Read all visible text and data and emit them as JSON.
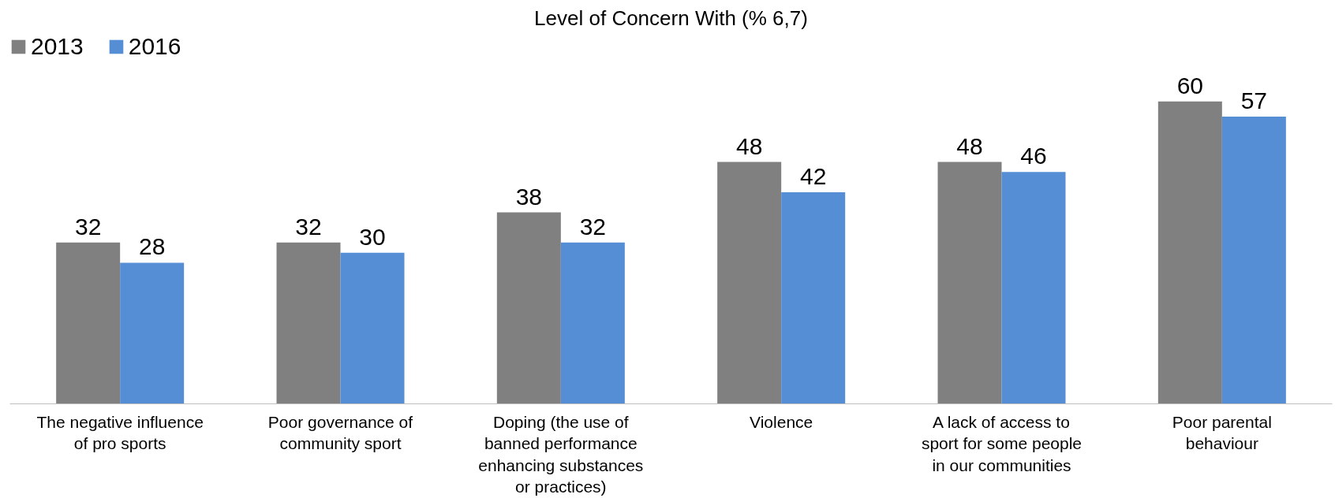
{
  "chart_data": {
    "type": "bar",
    "title": "Level of Concern With (% 6,7)",
    "categories": [
      "The negative influence\nof pro sports",
      "Poor governance of\ncommunity sport",
      "Doping (the use of\nbanned performance\nenhancing substances\nor practices)",
      "Violence",
      "A lack of access to\nsport for some people\nin our communities",
      "Poor parental\nbehaviour"
    ],
    "series": [
      {
        "name": "2013",
        "color": "#808080",
        "values": [
          32,
          32,
          38,
          48,
          48,
          60
        ]
      },
      {
        "name": "2016",
        "color": "#558ed5",
        "values": [
          28,
          30,
          32,
          42,
          46,
          57
        ]
      }
    ],
    "tick_labels": "x",
    "data_labels": true,
    "grid": false,
    "legend": "top left"
  }
}
